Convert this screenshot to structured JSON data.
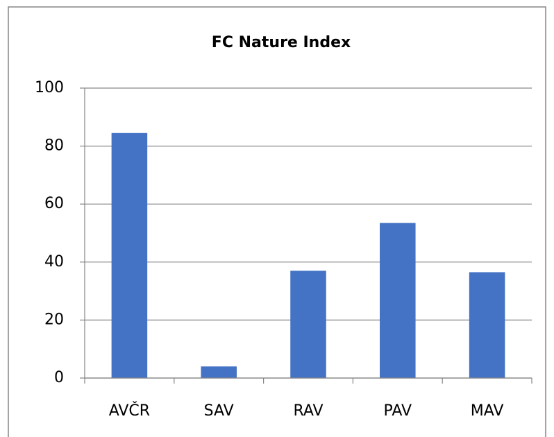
{
  "chart_data": {
    "type": "bar",
    "title": "FC Nature Index",
    "categories": [
      "AVČR",
      "SAV",
      "RAV",
      "PAV",
      "MAV"
    ],
    "values": [
      84.5,
      4,
      37,
      53.5,
      36.5
    ],
    "color": "#4472c4",
    "ylim": [
      0,
      100
    ],
    "yticks": [
      0,
      20,
      40,
      60,
      80,
      100
    ],
    "grid": true
  }
}
